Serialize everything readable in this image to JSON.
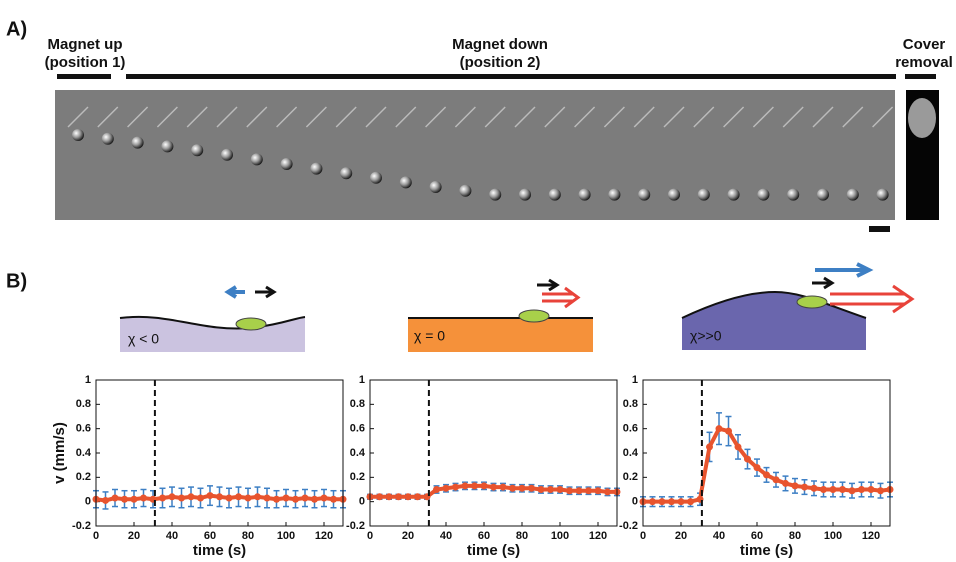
{
  "panel_a": {
    "label": "A)",
    "up": [
      "Magnet up",
      "(position 1)"
    ],
    "down": [
      "Magnet down",
      "(position 2)"
    ],
    "cover": [
      "Cover",
      "removal"
    ]
  },
  "panel_b": {
    "label": "B)",
    "schematics": [
      "χ < 0",
      "χ = 0",
      "χ>>0"
    ]
  },
  "chart_data": [
    {
      "type": "line",
      "ylabel": "v (mm/s)",
      "xlabel": "time (s)",
      "color": "#e8542e",
      "error_color": "#3d7fc4",
      "x": [
        0,
        5,
        10,
        15,
        20,
        25,
        30,
        35,
        40,
        45,
        50,
        55,
        60,
        65,
        70,
        75,
        80,
        85,
        90,
        95,
        100,
        105,
        110,
        115,
        120,
        125,
        130
      ],
      "values": [
        0.02,
        0.01,
        0.03,
        0.02,
        0.02,
        0.03,
        0.02,
        0.03,
        0.04,
        0.03,
        0.04,
        0.03,
        0.05,
        0.04,
        0.03,
        0.04,
        0.03,
        0.04,
        0.03,
        0.02,
        0.03,
        0.02,
        0.03,
        0.02,
        0.03,
        0.02,
        0.02
      ],
      "errors": [
        0.07,
        0.07,
        0.07,
        0.07,
        0.07,
        0.07,
        0.07,
        0.08,
        0.08,
        0.08,
        0.08,
        0.08,
        0.08,
        0.08,
        0.08,
        0.08,
        0.08,
        0.08,
        0.08,
        0.07,
        0.07,
        0.07,
        0.07,
        0.07,
        0.07,
        0.07,
        0.07
      ],
      "vline": 31,
      "xlim": [
        0,
        130
      ],
      "ylim": [
        -0.2,
        1
      ],
      "xticks": [
        0,
        20,
        40,
        60,
        80,
        100,
        120
      ],
      "yticks": [
        -0.2,
        0,
        0.2,
        0.4,
        0.6,
        0.8,
        1
      ]
    },
    {
      "type": "line",
      "xlabel": "time (s)",
      "color": "#e8542e",
      "error_color": "#3d7fc4",
      "x": [
        0,
        5,
        10,
        15,
        20,
        25,
        30,
        35,
        40,
        45,
        50,
        55,
        60,
        65,
        70,
        75,
        80,
        85,
        90,
        95,
        100,
        105,
        110,
        115,
        120,
        125,
        130
      ],
      "values": [
        0.04,
        0.04,
        0.04,
        0.04,
        0.04,
        0.04,
        0.04,
        0.1,
        0.11,
        0.12,
        0.13,
        0.13,
        0.13,
        0.12,
        0.12,
        0.11,
        0.11,
        0.11,
        0.1,
        0.1,
        0.1,
        0.09,
        0.09,
        0.09,
        0.09,
        0.08,
        0.08
      ],
      "errors": [
        0.02,
        0.02,
        0.02,
        0.02,
        0.02,
        0.02,
        0.02,
        0.03,
        0.03,
        0.03,
        0.03,
        0.03,
        0.03,
        0.03,
        0.03,
        0.03,
        0.03,
        0.03,
        0.03,
        0.03,
        0.03,
        0.03,
        0.03,
        0.03,
        0.03,
        0.03,
        0.03
      ],
      "vline": 31,
      "xlim": [
        0,
        130
      ],
      "ylim": [
        -0.2,
        1
      ],
      "xticks": [
        0,
        20,
        40,
        60,
        80,
        100,
        120
      ],
      "yticks": [
        -0.2,
        0,
        0.2,
        0.4,
        0.6,
        0.8,
        1
      ]
    },
    {
      "type": "line",
      "xlabel": "time (s)",
      "color": "#e8542e",
      "error_color": "#3d7fc4",
      "x": [
        0,
        5,
        10,
        15,
        20,
        25,
        30,
        35,
        40,
        45,
        50,
        55,
        60,
        65,
        70,
        75,
        80,
        85,
        90,
        95,
        100,
        105,
        110,
        115,
        120,
        125,
        130
      ],
      "values": [
        0,
        0,
        0,
        0,
        0,
        0,
        0.02,
        0.45,
        0.6,
        0.58,
        0.45,
        0.35,
        0.28,
        0.22,
        0.18,
        0.15,
        0.13,
        0.12,
        0.11,
        0.1,
        0.1,
        0.1,
        0.09,
        0.1,
        0.1,
        0.09,
        0.1
      ],
      "errors": [
        0.04,
        0.04,
        0.04,
        0.04,
        0.04,
        0.04,
        0.05,
        0.12,
        0.13,
        0.12,
        0.1,
        0.08,
        0.07,
        0.06,
        0.06,
        0.06,
        0.06,
        0.06,
        0.06,
        0.06,
        0.06,
        0.06,
        0.06,
        0.06,
        0.06,
        0.06,
        0.06
      ],
      "vline": 31,
      "xlim": [
        0,
        130
      ],
      "ylim": [
        -0.2,
        1
      ],
      "xticks": [
        0,
        20,
        40,
        60,
        80,
        100,
        120
      ],
      "yticks": [
        -0.2,
        0,
        0.2,
        0.4,
        0.6,
        0.8,
        1
      ]
    }
  ]
}
